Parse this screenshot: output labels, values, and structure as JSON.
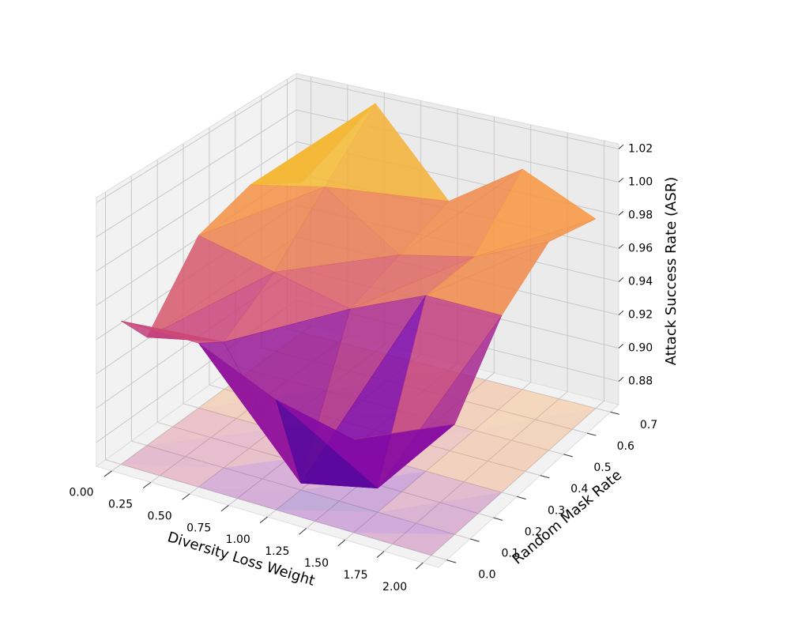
{
  "chart_data": {
    "type": "surface3d",
    "x_label": "Diversity Loss Weight",
    "y_label": "Random Mask Rate",
    "z_label": "Attack Success Rate (ASR)",
    "x": [
      0,
      0.5,
      1.0,
      1.5,
      2.0
    ],
    "y": [
      0.0,
      0.1,
      0.3,
      0.5,
      0.7
    ],
    "z": [
      [
        0.95,
        0.95,
        0.93,
        0.92,
        0.94
      ],
      [
        0.93,
        0.94,
        0.87,
        0.88,
        0.93
      ],
      [
        0.97,
        0.96,
        0.95,
        0.97,
        0.97
      ],
      [
        0.98,
        0.99,
        0.96,
        0.97,
        0.99
      ],
      [
        0.96,
        1.02,
        0.97,
        1.0,
        0.98
      ]
    ],
    "colormap": "plasma",
    "xlim": [
      -0.1,
      2.1
    ],
    "ylim": [
      -0.035,
      0.735
    ],
    "zlim": [
      0.866,
      1.023
    ],
    "xticks": [
      {
        "value": 0,
        "label": "0.00"
      },
      0.25,
      {
        "value": 0.5,
        "label": "0.50"
      },
      0.75,
      {
        "value": 1,
        "label": "1.00"
      },
      1.25,
      {
        "value": 1.5,
        "label": "1.50"
      },
      1.75,
      {
        "value": 2,
        "label": "2.00"
      }
    ],
    "yticks": [
      {
        "value": 0,
        "label": "0.0"
      },
      0.1,
      0.2,
      0.3,
      0.4,
      0.5,
      0.6,
      0.7
    ],
    "zticks": [
      0.88,
      {
        "value": 0.9,
        "label": "0.90"
      },
      0.92,
      0.94,
      0.96,
      0.98,
      {
        "value": 1,
        "label": "1.00"
      },
      1.02
    ],
    "grid": true
  }
}
